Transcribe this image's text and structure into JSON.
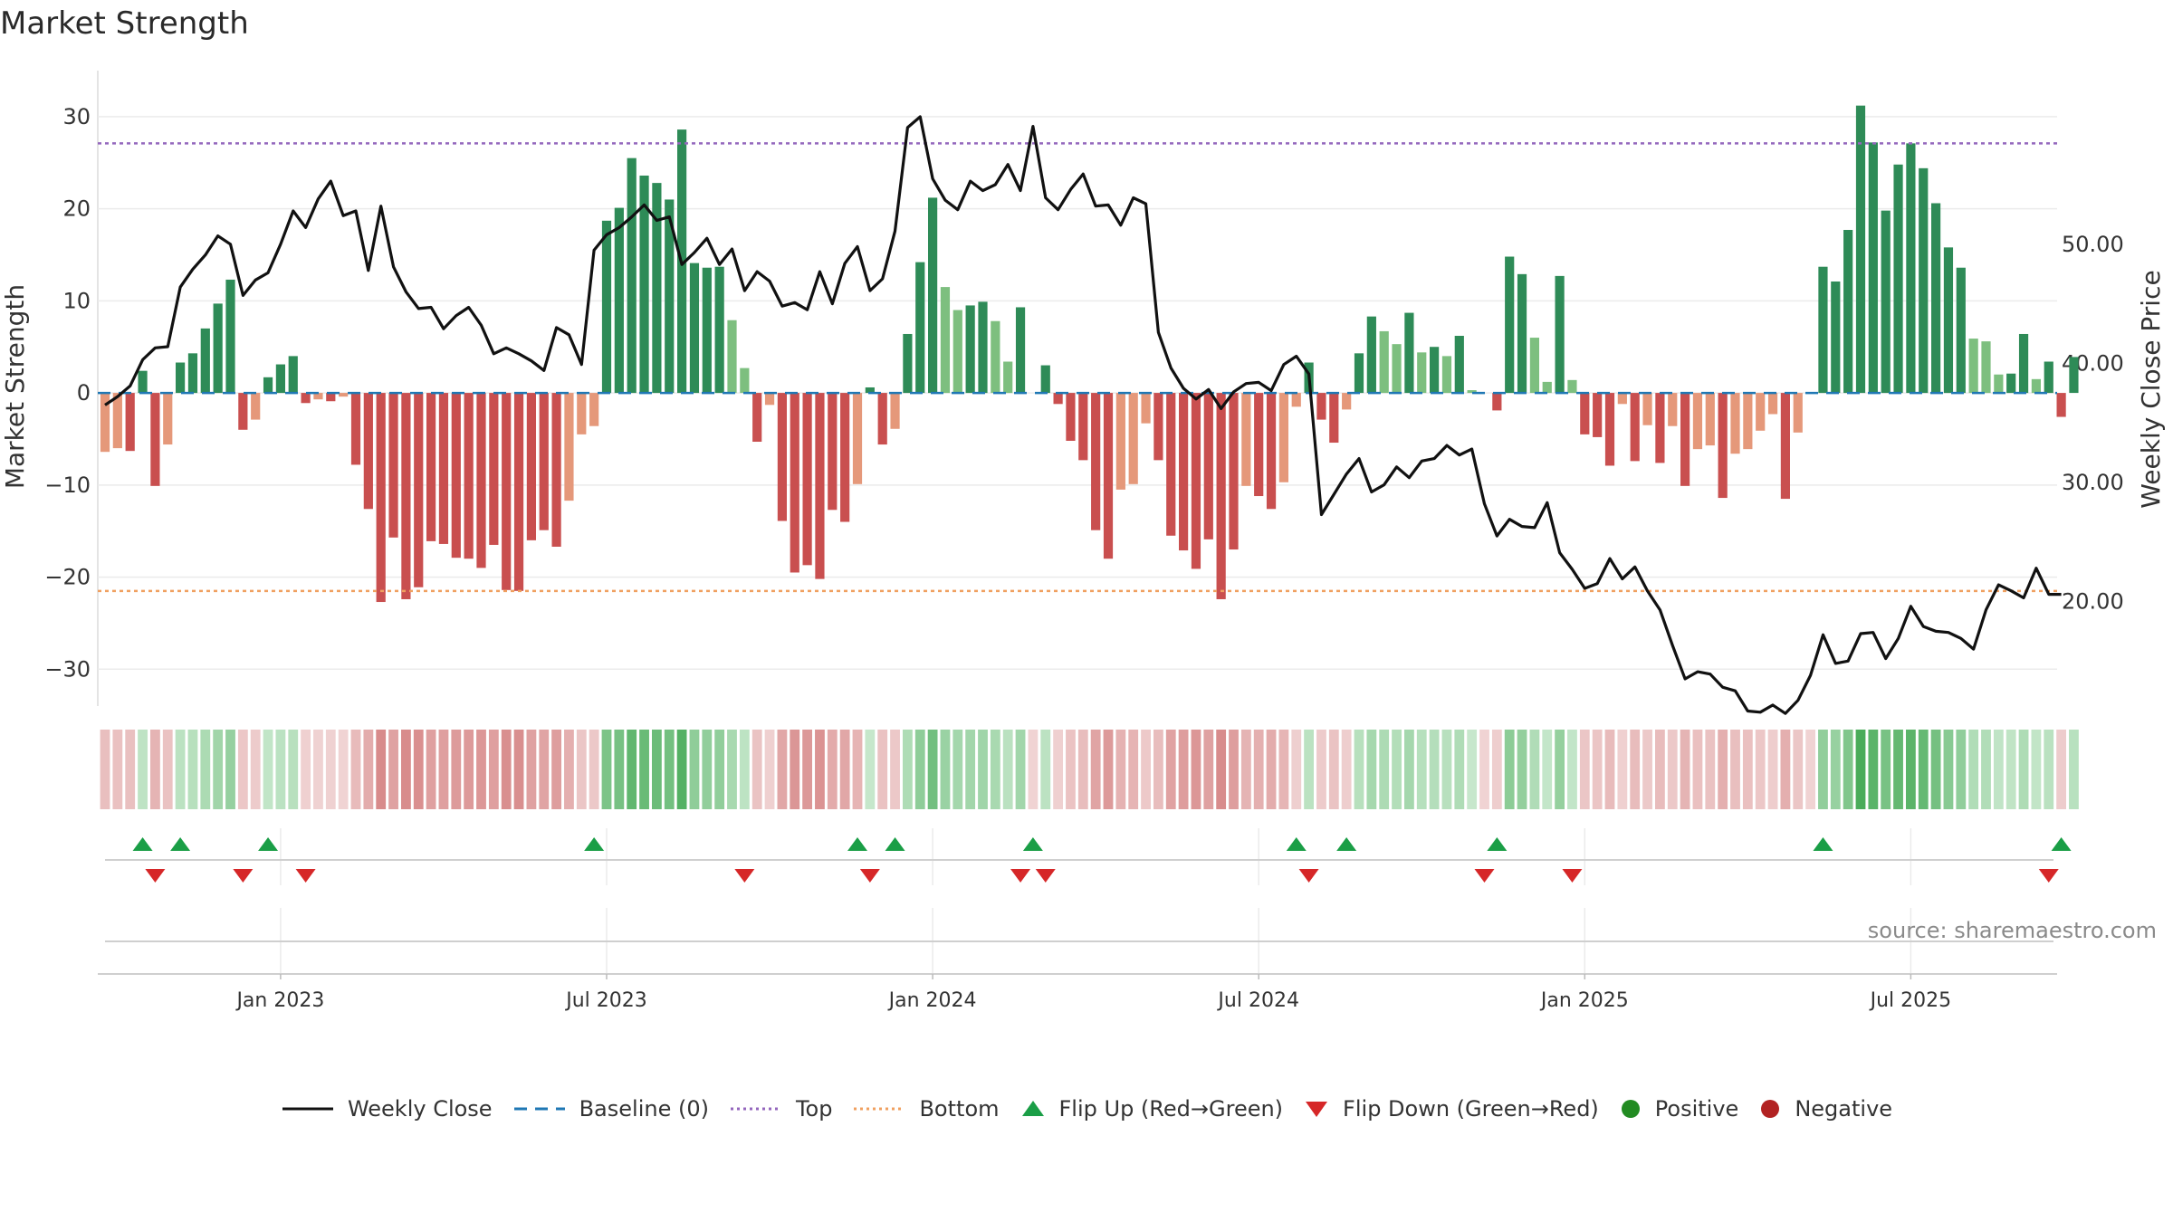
{
  "chart_data": {
    "type": "bar+line",
    "title": "Market Strength",
    "source": "source: sharemaestro.com",
    "left_axis": {
      "label": "Market Strength",
      "range": [
        -34,
        35
      ],
      "ticks": [
        30,
        20,
        10,
        0,
        -10,
        -20,
        -30
      ],
      "tick_labels": [
        "30",
        "20",
        "10",
        "0",
        "−10",
        "−20",
        "−30"
      ]
    },
    "right_axis": {
      "label": "Weekly Close Price",
      "range": [
        11.22,
        64.58
      ],
      "ticks": [
        50,
        40,
        30,
        20
      ],
      "tick_labels": [
        "50.00",
        "40.00",
        "30.00",
        "20.00"
      ]
    },
    "x_axis": {
      "labels": [
        "Jan 2023",
        "Jul 2023",
        "Jan 2024",
        "Jul 2024",
        "Jan 2025",
        "Jul 2025"
      ],
      "label_week_index": [
        14,
        40,
        66,
        92,
        118,
        144
      ]
    },
    "top_level": 27.1,
    "bottom_level": -21.5,
    "strength": [
      -6.4,
      -6.0,
      -6.3,
      2.4,
      -10.1,
      -5.6,
      3.3,
      4.3,
      7.0,
      9.7,
      12.3,
      -4.0,
      -2.9,
      1.7,
      3.1,
      4.0,
      -1.1,
      -0.7,
      -0.9,
      -0.4,
      -7.8,
      -12.6,
      -22.7,
      -15.7,
      -22.4,
      -21.1,
      -16.1,
      -16.4,
      -17.9,
      -18.0,
      -19.0,
      -16.5,
      -21.4,
      -21.5,
      -16.0,
      -14.9,
      -16.7,
      -11.7,
      -4.5,
      -3.6,
      18.7,
      20.1,
      25.5,
      23.6,
      22.8,
      21.0,
      28.6,
      14.1,
      13.6,
      13.7,
      7.9,
      2.7,
      -5.3,
      -1.3,
      -13.9,
      -19.5,
      -18.7,
      -20.2,
      -12.7,
      -14.0,
      -9.9,
      0.6,
      -5.6,
      -3.9,
      6.4,
      14.2,
      21.2,
      11.5,
      9.0,
      9.5,
      9.9,
      7.8,
      3.4,
      9.3,
      -0.2,
      3.0,
      -1.2,
      -5.2,
      -7.3,
      -14.9,
      -18.0,
      -10.5,
      -9.9,
      -3.3,
      -7.3,
      -15.5,
      -17.1,
      -19.1,
      -15.9,
      -22.4,
      -17.0,
      -10.1,
      -11.2,
      -12.6,
      -9.7,
      -1.5,
      3.3,
      -2.9,
      -5.4,
      -1.8,
      4.3,
      8.3,
      6.7,
      5.3,
      8.7,
      4.4,
      5.0,
      4.0,
      6.2,
      0.3,
      -0.2,
      -1.9,
      14.8,
      12.9,
      6.0,
      1.2,
      12.7,
      1.4,
      -4.5,
      -4.8,
      -7.9,
      -1.2,
      -7.4,
      -3.5,
      -7.6,
      -3.6,
      -10.1,
      -6.1,
      -5.7,
      -11.4,
      -6.6,
      -6.1,
      -4.1,
      -2.3,
      -11.5,
      -4.3,
      -0.2,
      13.7,
      12.1,
      17.7,
      31.2,
      27.2,
      19.8,
      24.8,
      27.1,
      24.4,
      20.6,
      15.8,
      13.6,
      5.9,
      5.6,
      2.0,
      2.1,
      6.4,
      1.5,
      3.4,
      -2.6,
      3.9
    ],
    "weekly_close": [
      36.5,
      37.2,
      38.1,
      40.3,
      41.3,
      41.4,
      46.4,
      47.9,
      49.1,
      50.7,
      50.0,
      45.7,
      47.0,
      47.6,
      50.0,
      52.8,
      51.4,
      53.8,
      55.3,
      52.4,
      52.8,
      47.8,
      53.2,
      48.1,
      46.0,
      44.6,
      44.7,
      42.9,
      44.0,
      44.7,
      43.2,
      40.8,
      41.3,
      40.8,
      40.2,
      39.4,
      43.0,
      42.4,
      39.9,
      49.5,
      50.8,
      51.4,
      52.3,
      53.3,
      52.0,
      52.3,
      48.3,
      49.3,
      50.5,
      48.3,
      49.6,
      46.1,
      47.7,
      46.9,
      44.8,
      45.1,
      44.5,
      47.7,
      45.0,
      48.4,
      49.8,
      46.1,
      47.1,
      51.1,
      59.8,
      60.7,
      55.5,
      53.7,
      52.9,
      55.3,
      54.5,
      55.0,
      56.7,
      54.5,
      59.9,
      53.9,
      52.9,
      54.6,
      55.9,
      53.2,
      53.3,
      51.6,
      53.9,
      53.4,
      42.6,
      39.6,
      37.9,
      37.0,
      37.8,
      36.2,
      37.6,
      38.3,
      38.4,
      37.7,
      39.9,
      40.6,
      39.1,
      27.3,
      29.0,
      30.7,
      32.0,
      29.2,
      29.8,
      31.3,
      30.4,
      31.8,
      32.0,
      33.1,
      32.3,
      32.8,
      28.2,
      25.5,
      26.9,
      26.3,
      26.2,
      28.3,
      24.1,
      22.7,
      21.1,
      21.5,
      23.6,
      21.9,
      22.9,
      20.9,
      19.3,
      16.3,
      13.5,
      14.1,
      13.9,
      12.8,
      12.5,
      10.8,
      10.7,
      11.3,
      10.6,
      11.7,
      13.8,
      17.2,
      14.8,
      15.0,
      17.3,
      17.4,
      15.2,
      16.9,
      19.6,
      17.9,
      17.5,
      17.4,
      16.9,
      16.0,
      19.3,
      21.4,
      20.9,
      20.3,
      22.8,
      20.6,
      20.6
    ],
    "flip_up_weeks": [
      3,
      6,
      13,
      39,
      60,
      63,
      74,
      95,
      99,
      111,
      137,
      156
    ],
    "flip_down_weeks": [
      4,
      11,
      16,
      51,
      61,
      73,
      75,
      96,
      110,
      117,
      155
    ],
    "x_gridline_weeks": [
      14,
      40,
      66,
      92,
      118,
      144
    ],
    "colors": {
      "pos_strong": "#2e8b57",
      "pos_light": "#7dbf7f",
      "neg_strong": "#c94f4f",
      "neg_light": "#e5987a",
      "close_line": "#111111",
      "baseline": "#1f77b4",
      "top_line": "#9467bd",
      "bottom_line": "#f0a060",
      "flip_up": "#1a9e46",
      "flip_down": "#d62728",
      "positive_dot": "#228b22",
      "negative_dot": "#b22222",
      "grid": "#ebebeb"
    }
  },
  "legend": [
    {
      "key": "close",
      "label": "Weekly Close"
    },
    {
      "key": "baseline",
      "label": "Baseline (0)"
    },
    {
      "key": "top",
      "label": "Top"
    },
    {
      "key": "bottom",
      "label": "Bottom"
    },
    {
      "key": "flipup",
      "label": "Flip Up (Red→Green)"
    },
    {
      "key": "flipdown",
      "label": "Flip Down (Green→Red)"
    },
    {
      "key": "positive",
      "label": "Positive"
    },
    {
      "key": "negative",
      "label": "Negative"
    }
  ]
}
